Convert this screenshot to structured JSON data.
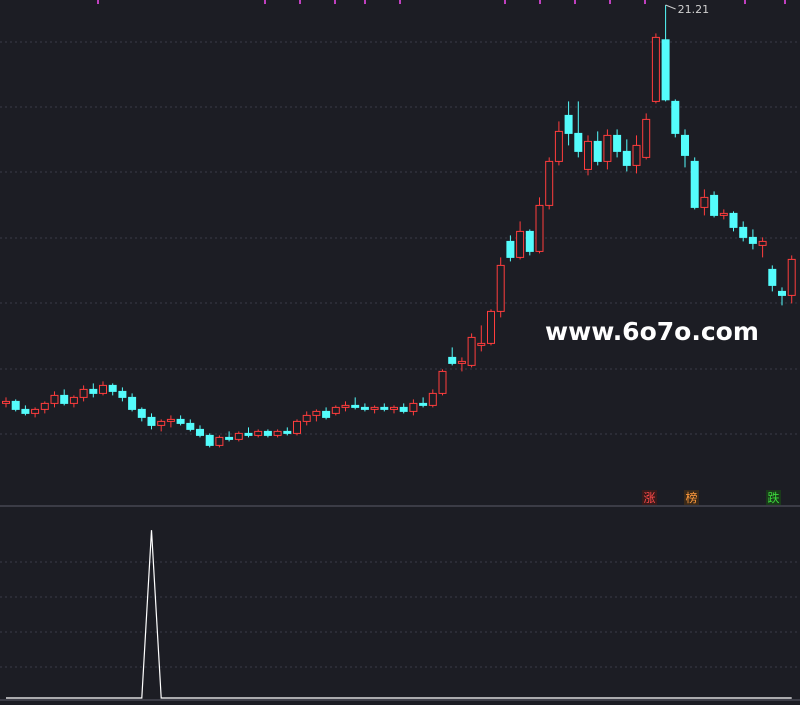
{
  "chart_data": [
    {
      "type": "candlestick",
      "open": [
        11.25,
        11.3,
        11.1,
        11.0,
        11.1,
        11.25,
        11.45,
        11.25,
        11.4,
        11.6,
        11.5,
        11.7,
        11.55,
        11.4,
        11.1,
        10.9,
        10.7,
        10.8,
        10.85,
        10.75,
        10.6,
        10.45,
        10.2,
        10.4,
        10.35,
        10.5,
        10.45,
        10.55,
        10.45,
        10.55,
        10.5,
        10.8,
        10.95,
        11.05,
        11.0,
        11.15,
        11.2,
        11.15,
        11.1,
        11.15,
        11.1,
        11.15,
        11.05,
        11.25,
        11.2,
        11.5,
        12.4,
        12.25,
        12.2,
        12.7,
        12.75,
        13.55,
        15.3,
        14.9,
        15.55,
        15.05,
        16.2,
        17.3,
        18.45,
        18.0,
        17.1,
        17.8,
        17.3,
        17.95,
        17.55,
        17.2,
        17.4,
        18.8,
        20.34,
        18.8,
        17.95,
        17.3,
        16.15,
        16.45,
        15.95,
        16.0,
        15.65,
        15.4,
        15.2,
        14.6,
        14.05,
        13.95
      ],
      "high": [
        11.4,
        11.35,
        11.2,
        11.15,
        11.3,
        11.55,
        11.6,
        11.45,
        11.7,
        11.75,
        11.8,
        11.75,
        11.65,
        11.5,
        11.15,
        11.0,
        10.85,
        10.95,
        10.95,
        10.85,
        10.7,
        10.5,
        10.45,
        10.55,
        10.55,
        10.65,
        10.6,
        10.6,
        10.6,
        10.65,
        10.85,
        11.05,
        11.1,
        11.15,
        11.2,
        11.3,
        11.4,
        11.25,
        11.2,
        11.25,
        11.2,
        11.25,
        11.35,
        11.4,
        11.6,
        12.1,
        12.65,
        12.4,
        13.0,
        13.2,
        13.6,
        14.9,
        15.45,
        15.8,
        15.6,
        16.4,
        17.4,
        18.3,
        18.8,
        18.8,
        17.95,
        18.05,
        18.1,
        18.1,
        17.85,
        17.95,
        18.5,
        20.5,
        21.21,
        18.85,
        18.1,
        17.4,
        16.6,
        16.55,
        16.1,
        16.05,
        15.8,
        15.6,
        15.4,
        14.7,
        14.15,
        14.95
      ],
      "low": [
        11.15,
        11.05,
        10.95,
        10.9,
        11.0,
        11.15,
        11.2,
        11.15,
        11.3,
        11.4,
        11.45,
        11.45,
        11.3,
        11.05,
        10.8,
        10.6,
        10.55,
        10.65,
        10.7,
        10.55,
        10.4,
        10.15,
        10.15,
        10.3,
        10.3,
        10.4,
        10.4,
        10.4,
        10.4,
        10.45,
        10.45,
        10.7,
        10.8,
        10.85,
        10.95,
        11.05,
        11.1,
        11.05,
        11.0,
        11.05,
        11.0,
        11.0,
        10.95,
        11.15,
        11.15,
        11.45,
        12.2,
        12.05,
        12.15,
        12.55,
        12.7,
        13.4,
        14.8,
        14.85,
        14.95,
        15.0,
        16.1,
        17.2,
        17.7,
        17.4,
        16.95,
        17.2,
        17.1,
        17.4,
        17.05,
        17.0,
        17.35,
        18.75,
        18.8,
        17.9,
        17.15,
        16.1,
        15.95,
        15.9,
        15.85,
        15.55,
        15.3,
        15.1,
        14.9,
        14.05,
        13.7,
        13.75
      ],
      "close": [
        11.3,
        11.1,
        11.0,
        11.1,
        11.25,
        11.45,
        11.25,
        11.4,
        11.6,
        11.5,
        11.7,
        11.55,
        11.4,
        11.1,
        10.9,
        10.7,
        10.8,
        10.85,
        10.75,
        10.6,
        10.45,
        10.2,
        10.4,
        10.35,
        10.5,
        10.45,
        10.55,
        10.45,
        10.55,
        10.5,
        10.8,
        10.95,
        11.05,
        10.9,
        11.15,
        11.2,
        11.15,
        11.1,
        11.15,
        11.1,
        11.15,
        11.05,
        11.25,
        11.2,
        11.5,
        12.05,
        12.25,
        12.3,
        12.9,
        12.75,
        13.55,
        14.7,
        14.9,
        15.55,
        15.05,
        16.2,
        17.3,
        18.05,
        18.0,
        17.55,
        17.8,
        17.3,
        17.95,
        17.55,
        17.2,
        17.7,
        18.35,
        20.4,
        18.84,
        18.0,
        17.45,
        16.15,
        16.4,
        15.95,
        16.0,
        15.65,
        15.4,
        15.25,
        15.3,
        14.2,
        13.95,
        14.85
      ],
      "up_color": "#ff3d3d",
      "down_color": "#54fcfc",
      "ylim": [
        8.71,
        21.335
      ],
      "watermark": "www.6o7o.com",
      "markers": [
        {
          "text": "涨",
          "color": "#ff4a4a"
        },
        {
          "text": "榜",
          "color": "#ff9a3c"
        },
        {
          "text": "跌",
          "color": "#3cdc3c"
        }
      ]
    },
    {
      "type": "line",
      "color": "#ffffff",
      "values": [
        0,
        0,
        0,
        0,
        0,
        0,
        0,
        0,
        0,
        0,
        0,
        0,
        0,
        0,
        0,
        1,
        0,
        0,
        0,
        0,
        0,
        0,
        0,
        0,
        0,
        0,
        0,
        0,
        0,
        0,
        0,
        0,
        0,
        0,
        0,
        0,
        0,
        0,
        0,
        0,
        0,
        0,
        0,
        0,
        0,
        0,
        0,
        0,
        0,
        0,
        0,
        0,
        0,
        0,
        0,
        0,
        0,
        0,
        0,
        0,
        0,
        0,
        0,
        0,
        0,
        0,
        0,
        0,
        0,
        0,
        0,
        0,
        0,
        0,
        0,
        0,
        0,
        0,
        0,
        0,
        0,
        0
      ],
      "ylim": [
        0,
        1.12
      ]
    }
  ]
}
